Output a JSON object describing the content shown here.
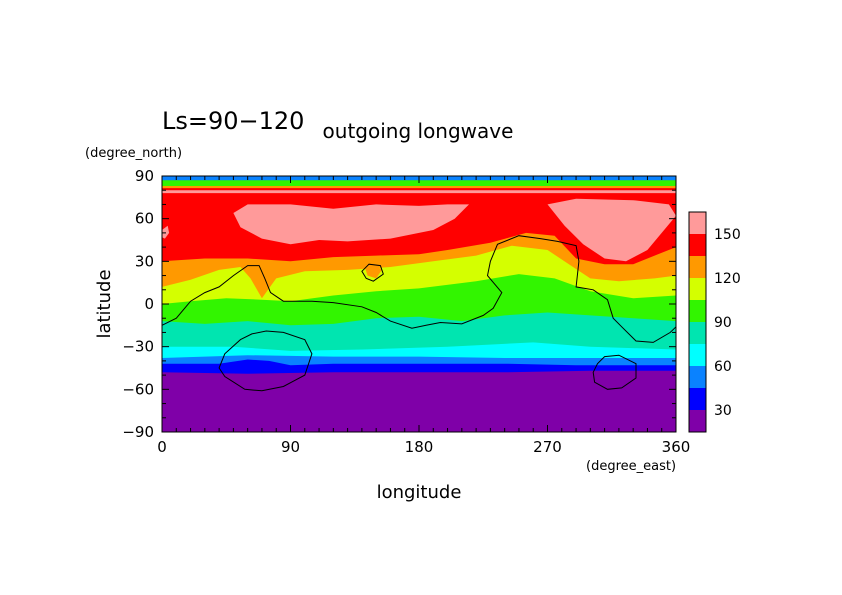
{
  "chart_data": {
    "type": "contour-map",
    "label": "Ls=90−120",
    "title": "outgoing longwave",
    "xlabel": "longitude",
    "ylabel": "latitude",
    "xunits": "(degree_east)",
    "yunits": "(degree_north)",
    "xlim": [
      0,
      360
    ],
    "ylim": [
      -90,
      90
    ],
    "xticks": [
      0,
      90,
      180,
      270,
      360
    ],
    "yticks": [
      90,
      60,
      30,
      0,
      -30,
      -60,
      -90
    ],
    "xtick_labels": [
      "0",
      "90",
      "180",
      "270",
      "360"
    ],
    "ytick_labels": [
      "90",
      "60",
      "30",
      "0",
      "−30",
      "−60",
      "−90"
    ],
    "colorbar": {
      "levels": [
        15,
        30,
        45,
        60,
        75,
        90,
        105,
        120,
        135,
        150,
        165
      ],
      "colors": [
        "#7f00a8",
        "#0000ff",
        "#0a82ff",
        "#00ffff",
        "#00e5b0",
        "#32f500",
        "#d4ff00",
        "#ff9900",
        "#ff0000",
        "#ff9a9a"
      ],
      "tick_values": [
        30,
        60,
        90,
        120,
        150
      ],
      "tick_labels": [
        "30",
        "60",
        "90",
        "120",
        "150"
      ]
    },
    "band_boundaries": [
      {
        "level": 30,
        "points": [
          [
            0,
            -48
          ],
          [
            60,
            -49
          ],
          [
            120,
            -48
          ],
          [
            180,
            -48
          ],
          [
            240,
            -48
          ],
          [
            300,
            -47
          ],
          [
            360,
            -47
          ]
        ]
      },
      {
        "level": 45,
        "points": [
          [
            0,
            -42
          ],
          [
            40,
            -42
          ],
          [
            60,
            -39
          ],
          [
            75,
            -40
          ],
          [
            90,
            -43
          ],
          [
            120,
            -42
          ],
          [
            180,
            -42
          ],
          [
            240,
            -42
          ],
          [
            290,
            -43
          ],
          [
            330,
            -43
          ],
          [
            360,
            -43
          ]
        ]
      },
      {
        "level": 60,
        "points": [
          [
            0,
            -38
          ],
          [
            60,
            -36
          ],
          [
            120,
            -37
          ],
          [
            180,
            -37
          ],
          [
            240,
            -38
          ],
          [
            300,
            -38
          ],
          [
            360,
            -38
          ]
        ]
      },
      {
        "level": 75,
        "points": [
          [
            0,
            -30
          ],
          [
            50,
            -30
          ],
          [
            90,
            -33
          ],
          [
            140,
            -32
          ],
          [
            200,
            -30
          ],
          [
            260,
            -27
          ],
          [
            300,
            -30
          ],
          [
            360,
            -32
          ]
        ]
      },
      {
        "level": 90,
        "points": [
          [
            0,
            -12
          ],
          [
            30,
            -14
          ],
          [
            60,
            -12
          ],
          [
            90,
            -15
          ],
          [
            120,
            -14
          ],
          [
            150,
            -10
          ],
          [
            180,
            -9
          ],
          [
            210,
            -12
          ],
          [
            240,
            -8
          ],
          [
            270,
            -6
          ],
          [
            300,
            -8
          ],
          [
            330,
            -10
          ],
          [
            360,
            -12
          ]
        ]
      },
      {
        "level": 105,
        "points": [
          [
            0,
            0
          ],
          [
            20,
            2
          ],
          [
            45,
            4
          ],
          [
            70,
            3
          ],
          [
            90,
            2
          ],
          [
            120,
            6
          ],
          [
            150,
            9
          ],
          [
            180,
            11
          ],
          [
            220,
            16
          ],
          [
            250,
            21
          ],
          [
            275,
            18
          ],
          [
            300,
            9
          ],
          [
            330,
            4
          ],
          [
            360,
            6
          ]
        ]
      },
      {
        "level": 120,
        "points": [
          [
            0,
            12
          ],
          [
            20,
            17
          ],
          [
            40,
            24
          ],
          [
            55,
            26
          ],
          [
            62,
            18
          ],
          [
            70,
            4
          ],
          [
            80,
            18
          ],
          [
            100,
            23
          ],
          [
            130,
            24
          ],
          [
            160,
            26
          ],
          [
            190,
            30
          ],
          [
            220,
            34
          ],
          [
            245,
            41
          ],
          [
            270,
            38
          ],
          [
            285,
            28
          ],
          [
            300,
            18
          ],
          [
            320,
            16
          ],
          [
            345,
            18
          ],
          [
            360,
            20
          ]
        ]
      },
      {
        "level": 135,
        "points": [
          [
            0,
            30
          ],
          [
            30,
            32
          ],
          [
            60,
            32
          ],
          [
            90,
            30
          ],
          [
            120,
            33
          ],
          [
            150,
            34
          ],
          [
            180,
            35
          ],
          [
            200,
            38
          ],
          [
            230,
            43
          ],
          [
            255,
            50
          ],
          [
            275,
            48
          ],
          [
            290,
            32
          ],
          [
            310,
            28
          ],
          [
            330,
            28
          ],
          [
            345,
            34
          ],
          [
            360,
            40
          ]
        ]
      },
      {
        "level": 150,
        "points": [
          [
            0,
            78
          ],
          [
            360,
            78
          ]
        ]
      },
      {
        "level": 135,
        "points": [
          [
            0,
            80
          ],
          [
            360,
            80
          ]
        ]
      },
      {
        "level": 120,
        "points": [
          [
            0,
            81.5
          ],
          [
            360,
            81.5
          ]
        ]
      },
      {
        "level": 90,
        "points": [
          [
            0,
            83
          ],
          [
            360,
            83
          ]
        ]
      },
      {
        "level": 45,
        "points": [
          [
            0,
            87
          ],
          [
            360,
            87
          ]
        ]
      }
    ],
    "high_regions": [
      {
        "level": 150,
        "outline": [
          [
            50,
            64
          ],
          [
            60,
            70
          ],
          [
            90,
            70
          ],
          [
            120,
            67
          ],
          [
            150,
            70
          ],
          [
            180,
            69
          ],
          [
            200,
            70
          ],
          [
            215,
            70
          ],
          [
            205,
            60
          ],
          [
            190,
            52
          ],
          [
            160,
            46
          ],
          [
            130,
            44
          ],
          [
            110,
            45
          ],
          [
            90,
            42
          ],
          [
            70,
            46
          ],
          [
            55,
            54
          ]
        ]
      },
      {
        "level": 150,
        "outline": [
          [
            270,
            70
          ],
          [
            290,
            74
          ],
          [
            330,
            73
          ],
          [
            355,
            70
          ],
          [
            360,
            62
          ],
          [
            350,
            50
          ],
          [
            340,
            38
          ],
          [
            325,
            30
          ],
          [
            310,
            32
          ],
          [
            295,
            42
          ],
          [
            282,
            55
          ]
        ]
      },
      {
        "level": 150,
        "outline": [
          [
            0,
            52
          ],
          [
            4,
            55
          ],
          [
            5,
            50
          ],
          [
            2,
            46
          ],
          [
            0,
            47
          ]
        ]
      },
      {
        "level": 120,
        "outline": [
          [
            142,
            26
          ],
          [
            149,
            28
          ],
          [
            154,
            24
          ],
          [
            150,
            18
          ],
          [
            144,
            20
          ]
        ]
      }
    ],
    "contours": [
      {
        "closed": false,
        "points": [
          [
            0,
            -15
          ],
          [
            10,
            -10
          ],
          [
            20,
            2
          ],
          [
            30,
            8
          ],
          [
            40,
            12
          ],
          [
            50,
            20
          ],
          [
            60,
            27
          ],
          [
            68,
            27
          ],
          [
            72,
            18
          ],
          [
            76,
            8
          ],
          [
            85,
            2
          ],
          [
            105,
            2
          ],
          [
            120,
            1
          ],
          [
            140,
            -2
          ],
          [
            150,
            -6
          ],
          [
            160,
            -12
          ],
          [
            175,
            -17
          ],
          [
            185,
            -15
          ],
          [
            195,
            -13
          ],
          [
            210,
            -14
          ],
          [
            225,
            -8
          ],
          [
            232,
            -3
          ],
          [
            238,
            8
          ],
          [
            228,
            20
          ],
          [
            230,
            30
          ],
          [
            235,
            42
          ],
          [
            250,
            48
          ],
          [
            265,
            46
          ],
          [
            277,
            44
          ],
          [
            290,
            41
          ],
          [
            292,
            30
          ],
          [
            290,
            12
          ],
          [
            302,
            10
          ],
          [
            312,
            3
          ],
          [
            316,
            -10
          ],
          [
            322,
            -16
          ],
          [
            332,
            -26
          ],
          [
            344,
            -27
          ],
          [
            356,
            -20
          ],
          [
            360,
            -16
          ]
        ]
      },
      {
        "closed": true,
        "points": [
          [
            73,
            -19
          ],
          [
            85,
            -20
          ],
          [
            100,
            -25
          ],
          [
            105,
            -35
          ],
          [
            100,
            -50
          ],
          [
            85,
            -58
          ],
          [
            70,
            -61
          ],
          [
            58,
            -60
          ],
          [
            44,
            -51
          ],
          [
            40,
            -45
          ],
          [
            44,
            -35
          ],
          [
            55,
            -25
          ],
          [
            63,
            -21
          ]
        ]
      },
      {
        "closed": true,
        "points": [
          [
            310,
            -37
          ],
          [
            320,
            -36
          ],
          [
            332,
            -42
          ],
          [
            332,
            -52
          ],
          [
            322,
            -59
          ],
          [
            312,
            -60
          ],
          [
            303,
            -55
          ],
          [
            302,
            -48
          ],
          [
            305,
            -42
          ]
        ]
      },
      {
        "closed": true,
        "points": [
          [
            140,
            23
          ],
          [
            145,
            28
          ],
          [
            153,
            27
          ],
          [
            155,
            21
          ],
          [
            148,
            16
          ],
          [
            143,
            18
          ]
        ]
      }
    ]
  }
}
